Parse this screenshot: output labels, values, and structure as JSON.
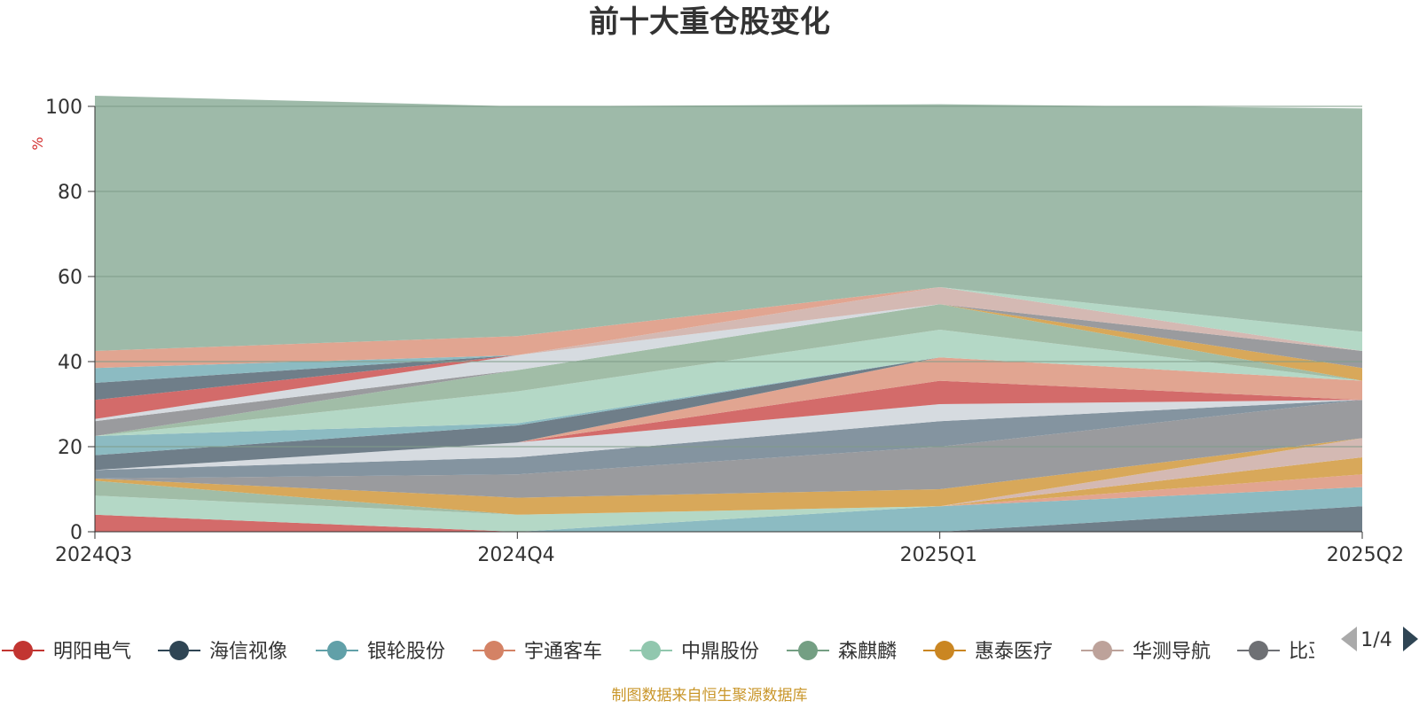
{
  "chart_data": {
    "type": "area",
    "stacked": true,
    "title": "前十大重仓股变化",
    "ylabel": "%",
    "ylim": [
      0,
      100
    ],
    "yticks": [
      0,
      20,
      40,
      60,
      80,
      100
    ],
    "grid": true,
    "categories": [
      "2024Q3",
      "2024Q4",
      "2025Q1",
      "2025Q2"
    ],
    "series": [
      {
        "name": "",
        "color": "#6f7e89",
        "values": [
          0,
          0,
          0,
          6
        ]
      },
      {
        "name": "",
        "color": "#8cbbc2",
        "values": [
          0,
          0,
          6,
          4.5
        ]
      },
      {
        "name": "",
        "color": "#e1a591",
        "values": [
          0,
          0,
          0,
          3
        ]
      },
      {
        "name": "",
        "color": "#d8a85a",
        "values": [
          0,
          0,
          0,
          4
        ]
      },
      {
        "name": "",
        "color": "#d4b9b3",
        "values": [
          0,
          0,
          0,
          4.5
        ]
      },
      {
        "name": "",
        "color": "#d36b6a",
        "values": [
          4,
          0,
          0,
          0
        ]
      },
      {
        "name": "",
        "color": "#b4d8c6",
        "values": [
          4.5,
          4,
          0,
          0
        ]
      },
      {
        "name": "",
        "color": "#a1bda7",
        "values": [
          3.5,
          0,
          0,
          0
        ]
      },
      {
        "name": "",
        "color": "#d8a85a",
        "values": [
          0.5,
          4,
          4,
          0
        ]
      },
      {
        "name": "",
        "color": "#9a9b9e",
        "values": [
          0,
          5.5,
          10,
          9
        ]
      },
      {
        "name": "",
        "color": "#8494a0",
        "values": [
          2,
          4,
          6,
          0
        ]
      },
      {
        "name": "",
        "color": "#d6dbe0",
        "values": [
          0,
          3.5,
          4,
          0
        ]
      },
      {
        "name": "",
        "color": "#d36b6a",
        "values": [
          0,
          0,
          5.5,
          0
        ]
      },
      {
        "name": "",
        "color": "#e1a591",
        "values": [
          0,
          0,
          5.5,
          4.5
        ]
      },
      {
        "name": "",
        "color": "#6f7e89",
        "values": [
          3.5,
          4,
          0,
          0
        ]
      },
      {
        "name": "",
        "color": "#8cbbc2",
        "values": [
          4.5,
          0.5,
          0,
          0
        ]
      },
      {
        "name": "",
        "color": "#b4d8c6",
        "values": [
          0,
          7.5,
          6.5,
          0
        ]
      },
      {
        "name": "",
        "color": "#a1bda7",
        "values": [
          0,
          5,
          6,
          0
        ]
      },
      {
        "name": "",
        "color": "#d8a85a",
        "values": [
          0,
          0,
          0,
          3
        ]
      },
      {
        "name": "",
        "color": "#9a9b9e",
        "values": [
          3.5,
          0,
          0,
          4
        ]
      },
      {
        "name": "",
        "color": "#d6dbe0",
        "values": [
          0.5,
          3.5,
          0,
          0
        ]
      },
      {
        "name": "",
        "color": "#d4b9b3",
        "values": [
          0,
          0,
          4,
          0
        ]
      },
      {
        "name": "",
        "color": "#d36b6a",
        "values": [
          4.5,
          0,
          0,
          0
        ]
      },
      {
        "name": "",
        "color": "#6f7e89",
        "values": [
          4,
          0,
          0,
          0
        ]
      },
      {
        "name": "",
        "color": "#8cbbc2",
        "values": [
          3.5,
          0,
          0,
          0
        ]
      },
      {
        "name": "",
        "color": "#e1a591",
        "values": [
          4,
          4.5,
          0,
          0
        ]
      },
      {
        "name": "",
        "color": "#b4d8c6",
        "values": [
          0,
          0,
          0,
          4.5
        ]
      },
      {
        "name": "",
        "color": "#9ebaa9",
        "values": [
          60,
          54,
          43,
          52.5
        ]
      }
    ]
  },
  "legend": {
    "items": [
      {
        "name": "明阳电气",
        "color": "#c23531"
      },
      {
        "name": "海信视像",
        "color": "#2f4554"
      },
      {
        "name": "银轮股份",
        "color": "#61a0a8"
      },
      {
        "name": "宇通客车",
        "color": "#d48265"
      },
      {
        "name": "中鼎股份",
        "color": "#91c7ae"
      },
      {
        "name": "森麒麟",
        "color": "#749f83"
      },
      {
        "name": "惠泰医疗",
        "color": "#ca8622"
      },
      {
        "name": "华测导航",
        "color": "#bda29a"
      },
      {
        "name": "比亚迪",
        "color": "#6e7074"
      }
    ],
    "page": "1/4"
  },
  "source": "制图数据来自恒生聚源数据库"
}
